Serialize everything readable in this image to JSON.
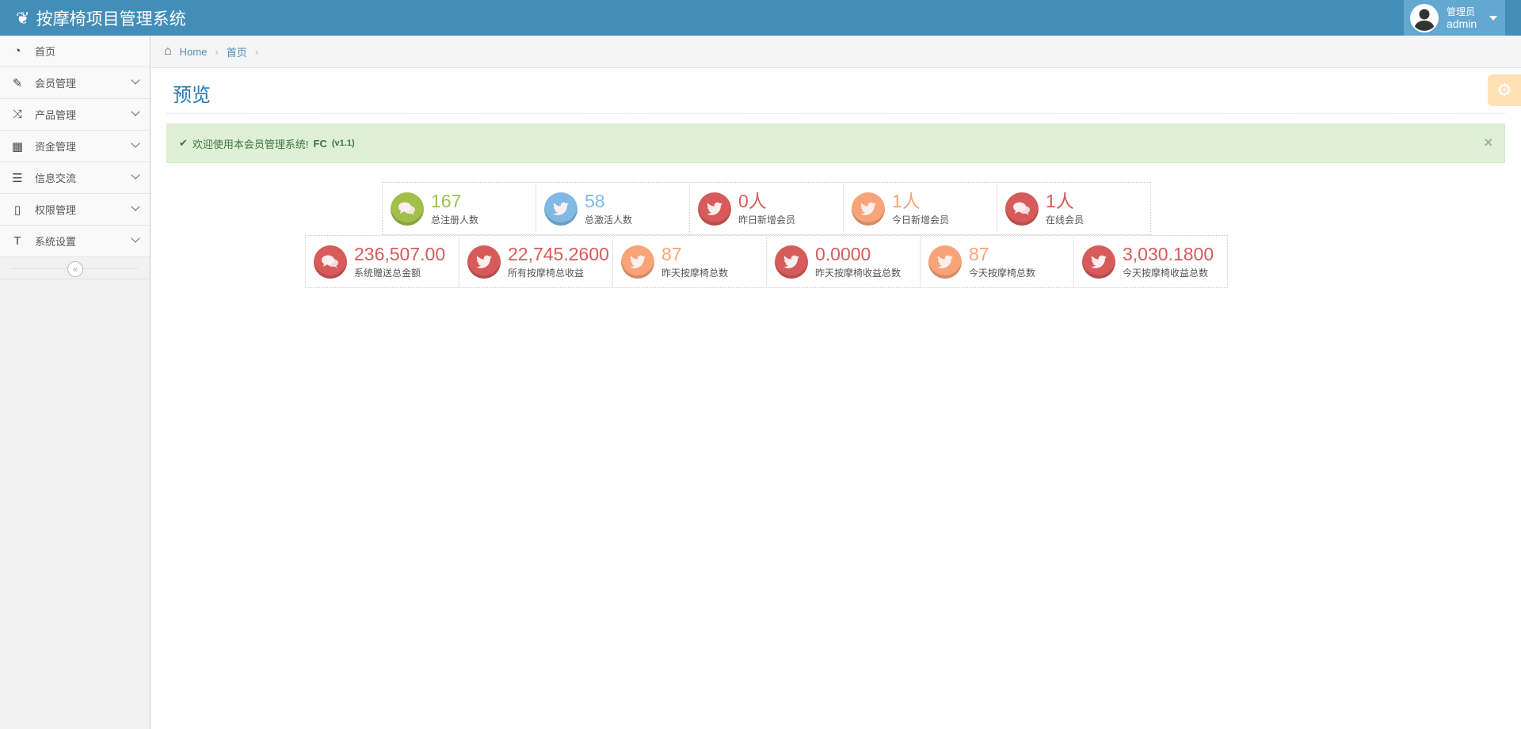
{
  "header": {
    "title": "按摩椅项目管理系统",
    "user_role": "管理员",
    "user_name": "admin"
  },
  "sidebar": {
    "items": [
      {
        "label": "首页",
        "icon": "dashboard-icon",
        "glyph": "◔",
        "has_children": false
      },
      {
        "label": "会员管理",
        "icon": "edit-icon",
        "glyph": "✎",
        "has_children": true
      },
      {
        "label": "产品管理",
        "icon": "shuffle-icon",
        "glyph": "⤨",
        "has_children": true
      },
      {
        "label": "资金管理",
        "icon": "calendar-icon",
        "glyph": "▦",
        "has_children": true
      },
      {
        "label": "信息交流",
        "icon": "list-icon",
        "glyph": "☰",
        "has_children": true
      },
      {
        "label": "权限管理",
        "icon": "file-icon",
        "glyph": "▯",
        "has_children": true
      },
      {
        "label": "系统设置",
        "icon": "text-icon",
        "glyph": "T",
        "has_children": true
      }
    ],
    "collapse_glyph": "«"
  },
  "breadcrumb": {
    "home": "Home",
    "current": "首页"
  },
  "page": {
    "title": "预览"
  },
  "alert": {
    "text": "欢迎使用本会员管理系统!",
    "brand": "FC",
    "version": "(v1.1)"
  },
  "colors": {
    "green": "#a0c04a",
    "blue": "#80b9e3",
    "red": "#d75b5b",
    "orange": "#f8a478",
    "header": "#438eb9"
  },
  "stats_row1": [
    {
      "value": "167",
      "label": "总注册人数",
      "icon": "comments-icon",
      "color": "green"
    },
    {
      "value": "58",
      "label": "总激活人数",
      "icon": "twitter-icon",
      "color": "blue"
    },
    {
      "value": "0人",
      "label": "昨日新增会员",
      "icon": "twitter-icon",
      "color": "red"
    },
    {
      "value": "1人",
      "label": "今日新增会员",
      "icon": "twitter-icon",
      "color": "orange"
    },
    {
      "value": "1人",
      "label": "在线会员",
      "icon": "comments-icon",
      "color": "red"
    }
  ],
  "stats_row2": [
    {
      "value": "236,507.00",
      "label": "系统赠送总金额",
      "icon": "comments-icon",
      "color": "red"
    },
    {
      "value": "22,745.2600",
      "label": "所有按摩椅总收益",
      "icon": "twitter-icon",
      "color": "red"
    },
    {
      "value": "87",
      "label": "昨天按摩椅总数",
      "icon": "twitter-icon",
      "color": "orange"
    },
    {
      "value": "0.0000",
      "label": "昨天按摩椅收益总数",
      "icon": "twitter-icon",
      "color": "red"
    },
    {
      "value": "87",
      "label": "今天按摩椅总数",
      "icon": "twitter-icon",
      "color": "orange"
    },
    {
      "value": "3,030.1800",
      "label": "今天按摩椅收益总数",
      "icon": "twitter-icon",
      "color": "red"
    }
  ]
}
